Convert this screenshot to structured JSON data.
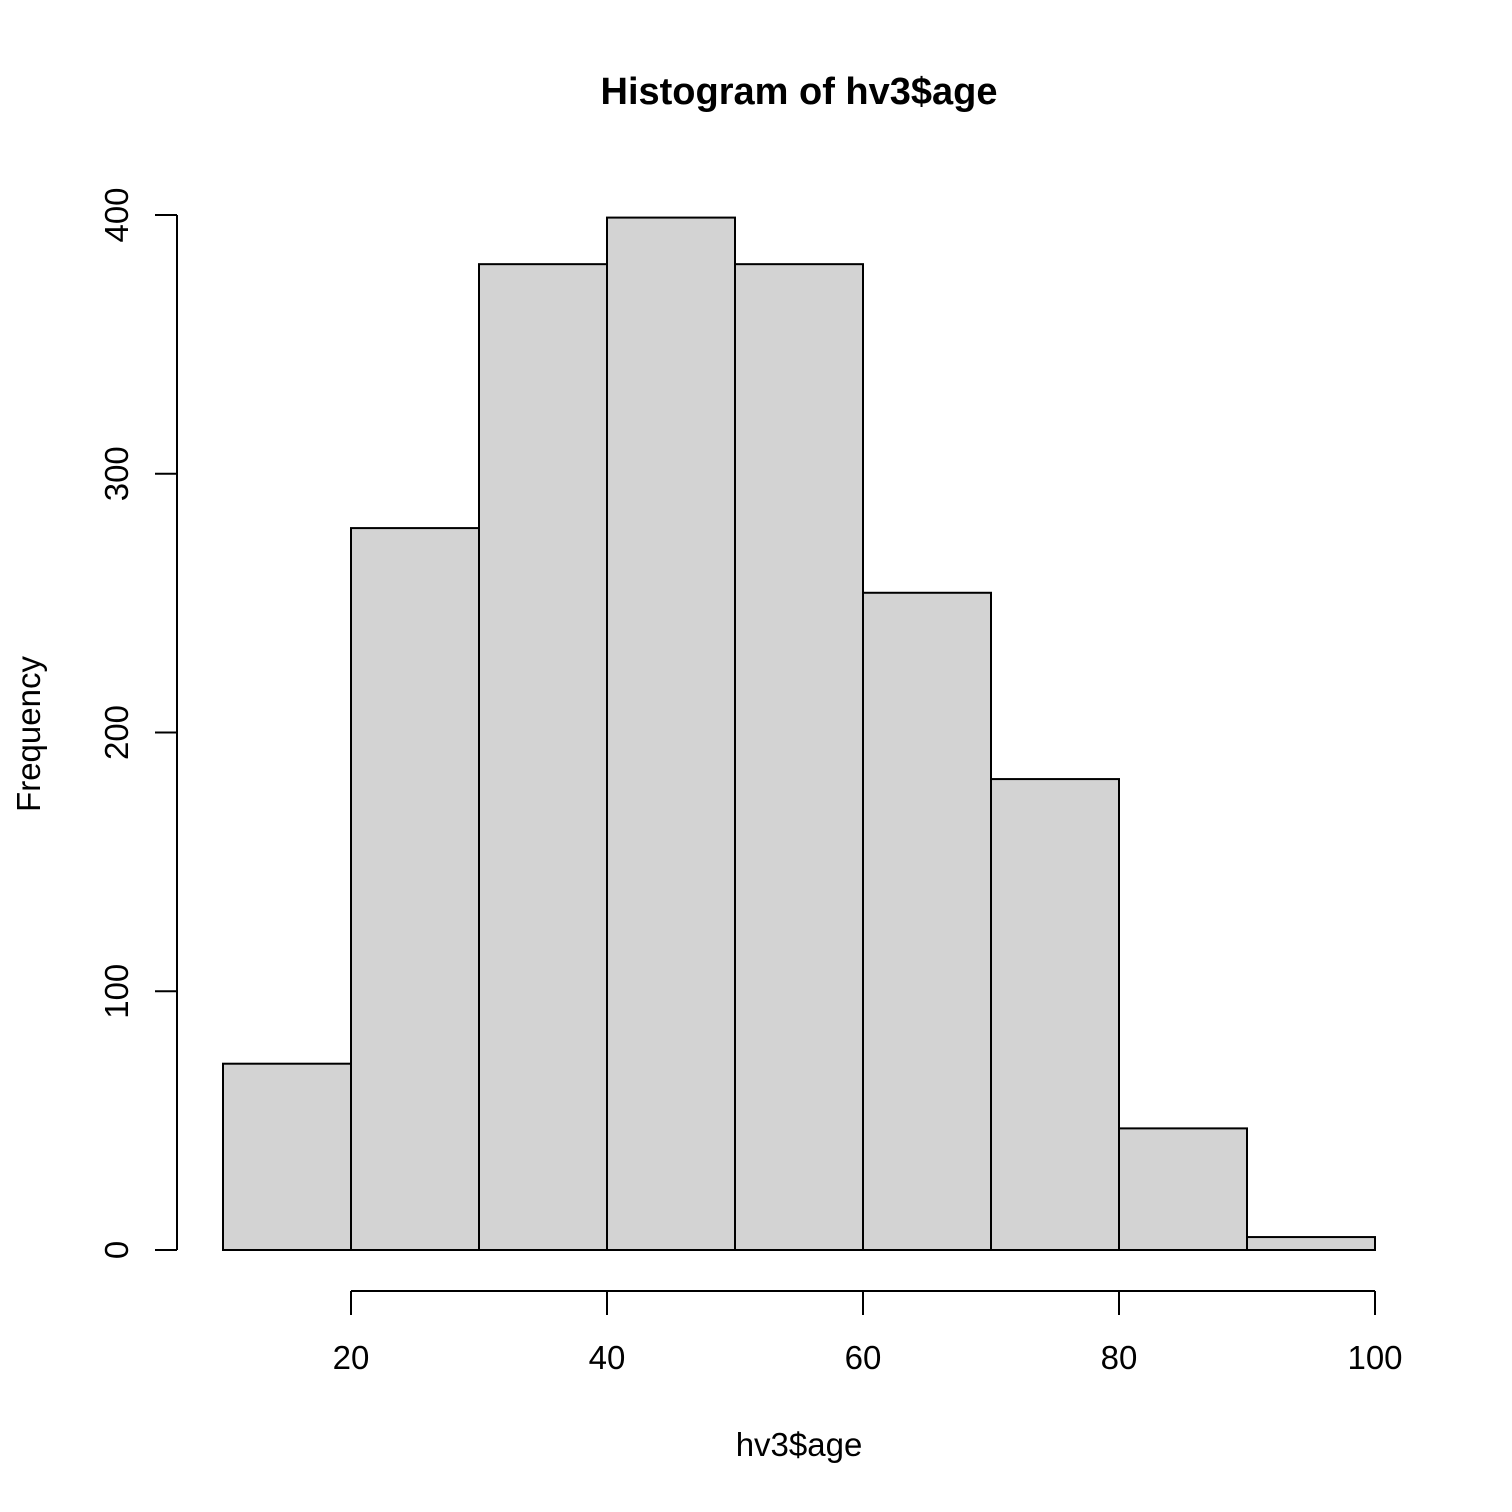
{
  "chart_data": {
    "type": "bar",
    "title": "Histogram of hv3$age",
    "xlabel": "hv3$age",
    "ylabel": "Frequency",
    "bins": [
      {
        "from": 10,
        "to": 20,
        "value": 72
      },
      {
        "from": 20,
        "to": 30,
        "value": 279
      },
      {
        "from": 30,
        "to": 40,
        "value": 381
      },
      {
        "from": 40,
        "to": 50,
        "value": 399
      },
      {
        "from": 50,
        "to": 60,
        "value": 381
      },
      {
        "from": 60,
        "to": 70,
        "value": 254
      },
      {
        "from": 70,
        "to": 80,
        "value": 182
      },
      {
        "from": 80,
        "to": 90,
        "value": 47
      },
      {
        "from": 90,
        "to": 100,
        "value": 5
      }
    ],
    "x_ticks": [
      20,
      40,
      60,
      80,
      100
    ],
    "y_ticks": [
      0,
      100,
      200,
      300,
      400
    ],
    "xlim": [
      10,
      100
    ],
    "ylim": [
      0,
      400
    ],
    "bar_fill": "#d3d3d3",
    "bar_border": "#000000",
    "grid": false
  }
}
